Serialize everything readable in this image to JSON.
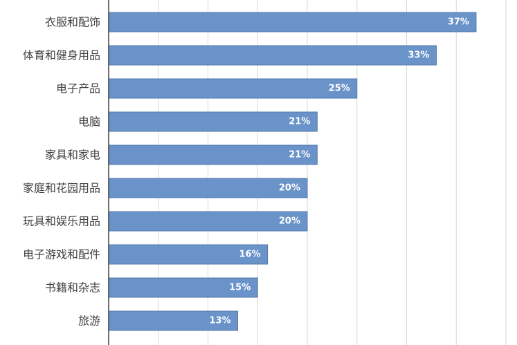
{
  "chart_data": {
    "type": "bar",
    "orientation": "horizontal",
    "categories": [
      "衣服和配饰",
      "体育和健身用品",
      "电子产品",
      "电脑",
      "家具和家电",
      "家庭和花园用品",
      "玩具和娱乐用品",
      "电子游戏和配件",
      "书籍和杂志",
      "旅游"
    ],
    "values": [
      37,
      33,
      25,
      21,
      21,
      20,
      20,
      16,
      15,
      13
    ],
    "value_labels": [
      "37%",
      "33%",
      "25%",
      "21%",
      "21%",
      "20%",
      "20%",
      "16%",
      "15%",
      "13%"
    ],
    "unit": "%",
    "xlim": [
      0,
      40
    ],
    "grid": true,
    "legend": "none",
    "bar_color": "#6993c9",
    "bar_edge_color": "#5579ad",
    "grid_color": "#d9d9d9",
    "axis_color": "#404040",
    "label_color": "#404040",
    "value_label_color": "#ffffff"
  }
}
